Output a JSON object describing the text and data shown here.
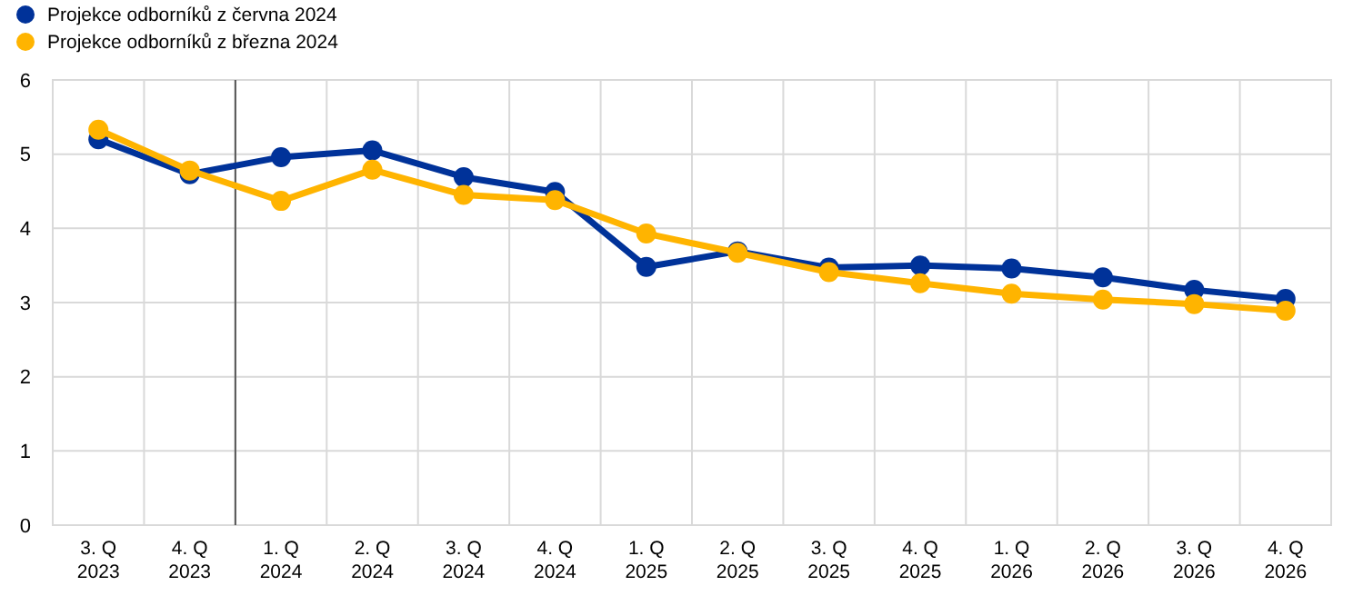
{
  "chart_data": {
    "type": "line",
    "categories": [
      "3. Q\n2023",
      "4. Q\n2023",
      "1. Q\n2024",
      "2. Q\n2024",
      "3. Q\n2024",
      "4. Q\n2024",
      "1. Q\n2025",
      "2. Q\n2025",
      "3. Q\n2025",
      "4. Q\n2025",
      "1. Q\n2026",
      "2. Q\n2026",
      "3. Q\n2026",
      "4. Q\n2026"
    ],
    "series": [
      {
        "name": "Projekce odborníků z června 2024",
        "color": "#003299",
        "values": [
          5.2,
          4.73,
          4.96,
          5.05,
          4.69,
          4.49,
          3.48,
          3.69,
          3.47,
          3.5,
          3.46,
          3.34,
          3.17,
          3.05
        ]
      },
      {
        "name": "Projekce odborníků z března 2024",
        "color": "#ffb400",
        "values": [
          5.33,
          4.78,
          4.37,
          4.79,
          4.45,
          4.38,
          3.93,
          3.67,
          3.41,
          3.26,
          3.12,
          3.04,
          2.98,
          2.89
        ]
      }
    ],
    "ylim": [
      0,
      6
    ],
    "yticks": [
      0,
      1,
      2,
      3,
      4,
      5,
      6
    ],
    "grid": true,
    "legend": "top left",
    "marker": "circle",
    "line_style": "solid",
    "ref_lines": [
      {
        "axis": "x",
        "value": "4. Q\n2023",
        "color": "#555555"
      }
    ]
  }
}
